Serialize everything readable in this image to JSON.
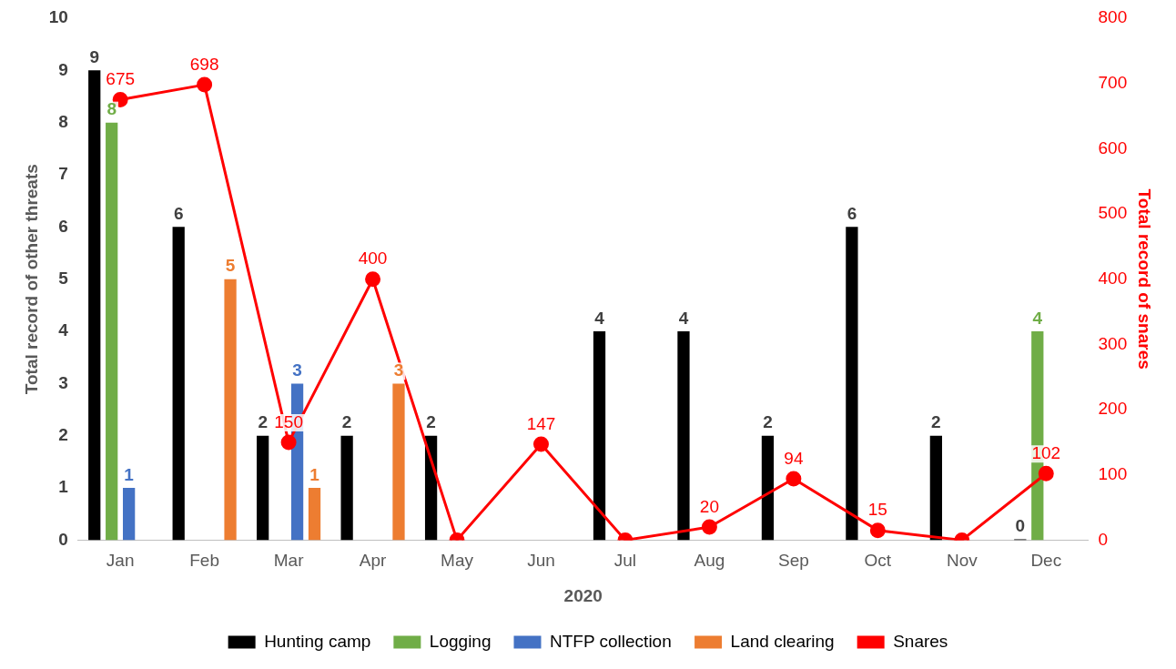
{
  "chart_data": {
    "type": "bar",
    "xlabel": "2020",
    "ylabel": "Total record of other threats",
    "y2label": "Total record of snares",
    "categories": [
      "Jan",
      "Feb",
      "Mar",
      "Apr",
      "May",
      "Jun",
      "Jul",
      "Aug",
      "Sep",
      "Oct",
      "Nov",
      "Dec"
    ],
    "series": [
      {
        "name": "Hunting camp",
        "color": "#000000",
        "values": [
          9,
          6,
          2,
          2,
          2,
          null,
          4,
          4,
          2,
          6,
          2,
          0
        ],
        "value_labels": [
          "9",
          "6",
          "2",
          "2",
          "2",
          null,
          "4",
          "4",
          "2",
          "6",
          "2",
          "0"
        ]
      },
      {
        "name": "Logging",
        "color": "#70ad47",
        "values": [
          8,
          null,
          null,
          null,
          null,
          null,
          null,
          null,
          null,
          null,
          null,
          4
        ],
        "value_labels": [
          "8",
          null,
          null,
          null,
          null,
          null,
          null,
          null,
          null,
          null,
          null,
          "4"
        ]
      },
      {
        "name": "NTFP collection",
        "color": "#4472c4",
        "values": [
          1,
          null,
          3,
          null,
          null,
          null,
          null,
          null,
          null,
          null,
          null,
          null
        ],
        "value_labels": [
          "1",
          null,
          "3",
          null,
          null,
          null,
          null,
          null,
          null,
          null,
          null,
          null
        ]
      },
      {
        "name": "Land clearing",
        "color": "#ed7d31",
        "values": [
          null,
          5,
          1,
          3,
          null,
          null,
          null,
          null,
          null,
          null,
          null,
          null
        ],
        "value_labels": [
          null,
          "5",
          "1",
          "3",
          null,
          null,
          null,
          null,
          null,
          null,
          null,
          null
        ]
      },
      {
        "name": "Snares",
        "type": "line",
        "axis": "y2",
        "color": "#ff0000",
        "marker": "circle",
        "values": [
          675,
          698,
          150,
          400,
          0,
          147,
          0,
          20,
          94,
          15,
          0,
          102
        ],
        "value_labels": [
          "675",
          "698",
          "150",
          "400",
          null,
          "147",
          null,
          "20",
          "94",
          "15",
          null,
          "102"
        ]
      }
    ],
    "ylim": [
      0,
      10
    ],
    "yticks": [
      0,
      1,
      2,
      3,
      4,
      5,
      6,
      7,
      8,
      9,
      10
    ],
    "y2lim": [
      0,
      800
    ],
    "y2ticks": [
      0,
      100,
      200,
      300,
      400,
      500,
      600,
      700,
      800
    ],
    "grid": false,
    "legend": "bottom"
  }
}
